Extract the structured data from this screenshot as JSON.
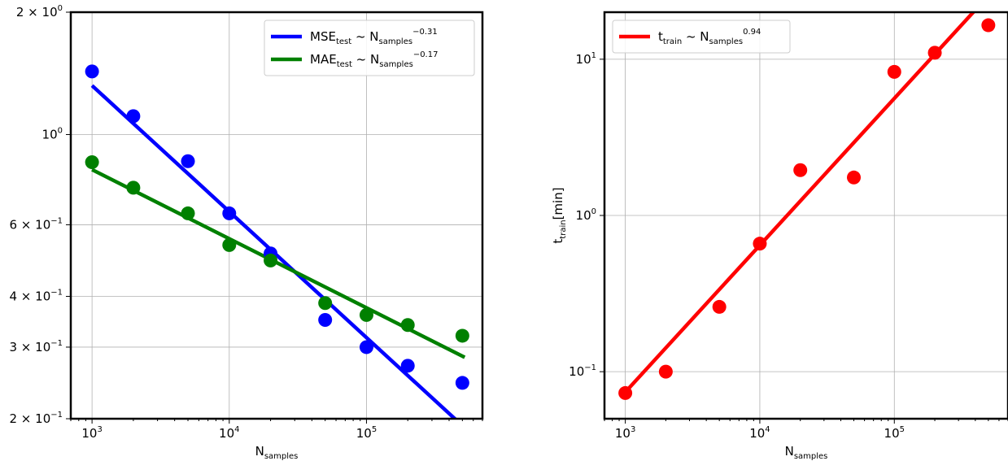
{
  "chart_data": [
    {
      "type": "scatter",
      "subtype": "log-log scatter with power-law fit lines",
      "title": "",
      "xlabel": {
        "base": "N",
        "sub": "samples"
      },
      "ylabel": "",
      "xscale": "log",
      "yscale": "log",
      "xlim": [
        700,
        700000
      ],
      "ylim": [
        0.2,
        2.0
      ],
      "grid": true,
      "legend_position": "top-right",
      "xticks": [
        {
          "value": 1000,
          "base": "10",
          "exp": "3"
        },
        {
          "value": 10000,
          "base": "10",
          "exp": "4"
        },
        {
          "value": 100000,
          "base": "10",
          "exp": "5"
        }
      ],
      "yticks": [
        {
          "value": 2.0,
          "base": "2 × 10",
          "exp": "0"
        },
        {
          "value": 1.0,
          "base": "10",
          "exp": "0"
        },
        {
          "value": 0.6,
          "base": "6 × 10",
          "exp": "−1"
        },
        {
          "value": 0.4,
          "base": "4 × 10",
          "exp": "−1"
        },
        {
          "value": 0.3,
          "base": "3 × 10",
          "exp": "−1"
        },
        {
          "value": 0.2,
          "base": "2 × 10",
          "exp": "−1"
        }
      ],
      "series": [
        {
          "name": "MSE_test ~ N_samples^-0.31",
          "legend": {
            "base": "MSE",
            "sub": "test",
            "mid": " ~ N",
            "sub2": "samples",
            "sup": "−0.31"
          },
          "color": "#0000ff",
          "x": [
            1000,
            2000,
            5000,
            10000,
            20000,
            50000,
            100000,
            200000,
            500000
          ],
          "y": [
            1.43,
            1.11,
            0.86,
            0.64,
            0.51,
            0.35,
            0.3,
            0.27,
            0.245
          ],
          "fit": {
            "coef": 1.32,
            "exp": -0.31,
            "x_range": [
              1000,
              520000
            ]
          }
        },
        {
          "name": "MAE_test ~ N_samples^-0.17",
          "legend": {
            "base": "MAE",
            "sub": "test",
            "mid": " ~ N",
            "sub2": "samples",
            "sup": "−0.17"
          },
          "color": "#008000",
          "x": [
            1000,
            2000,
            5000,
            10000,
            20000,
            50000,
            100000,
            200000,
            500000
          ],
          "y": [
            0.855,
            0.74,
            0.64,
            0.535,
            0.49,
            0.385,
            0.36,
            0.34,
            0.32
          ],
          "fit": {
            "coef": 0.82,
            "exp": -0.17,
            "x_range": [
              1000,
              520000
            ]
          }
        }
      ]
    },
    {
      "type": "scatter",
      "subtype": "log-log scatter with power-law fit line",
      "title": "",
      "xlabel": {
        "base": "N",
        "sub": "samples"
      },
      "ylabel": {
        "base": "t",
        "sub": "train",
        "rest": "[min]"
      },
      "xscale": "log",
      "yscale": "log",
      "xlim": [
        700,
        700000
      ],
      "ylim": [
        0.05,
        20
      ],
      "grid": true,
      "legend_position": "top-left",
      "xticks": [
        {
          "value": 1000,
          "base": "10",
          "exp": "3"
        },
        {
          "value": 10000,
          "base": "10",
          "exp": "4"
        },
        {
          "value": 100000,
          "base": "10",
          "exp": "5"
        }
      ],
      "yticks": [
        {
          "value": 10,
          "base": "10",
          "exp": "1"
        },
        {
          "value": 1,
          "base": "10",
          "exp": "0"
        },
        {
          "value": 0.1,
          "base": "10",
          "exp": "−1"
        }
      ],
      "series": [
        {
          "name": "t_train ~ N_samples^0.94",
          "legend": {
            "base": "t",
            "sub": "train",
            "mid": " ~ N",
            "sub2": "samples",
            "sup": "0.94"
          },
          "color": "#ff0000",
          "x": [
            1000,
            2000,
            5000,
            10000,
            20000,
            50000,
            100000,
            200000,
            500000
          ],
          "y": [
            0.073,
            0.1,
            0.26,
            0.66,
            1.95,
            1.75,
            8.3,
            11.0,
            16.5
          ],
          "fit": {
            "coef": 0.074,
            "exp": 0.94,
            "x_range": [
              1000,
              520000
            ]
          }
        }
      ]
    }
  ]
}
